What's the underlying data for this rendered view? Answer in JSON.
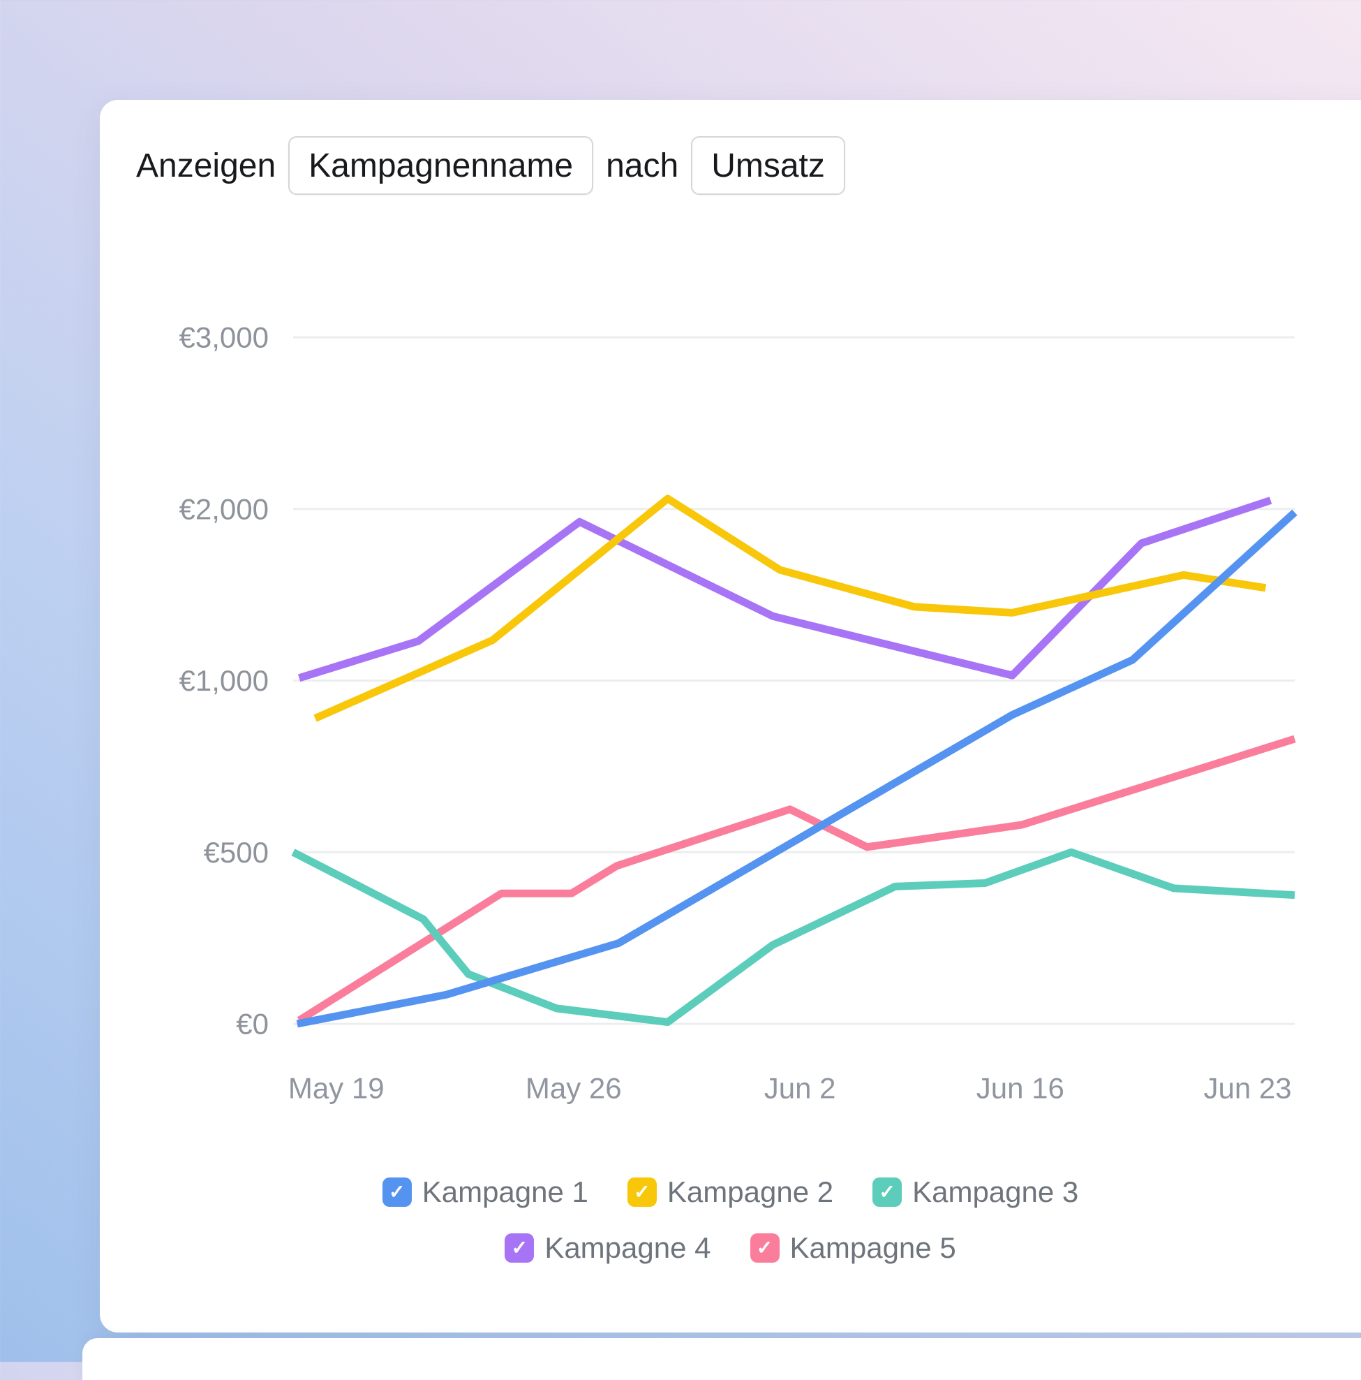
{
  "header": {
    "prefix": "Anzeigen",
    "dimension": "Kampagnenname",
    "connector": "nach",
    "measure": "Umsatz"
  },
  "colors": {
    "card_background": "#ffffff",
    "header_text": "#17191c",
    "chip_border": "#d3d6da",
    "gridline": "#ecedef",
    "y_axis_label": "#8e939b",
    "x_axis_label": "#9096a0",
    "legend_label": "#6e747c",
    "background_gradient": [
      "#9fc0eb",
      "#bdd0f1",
      "#ddd7ee",
      "#f5e8f2"
    ]
  },
  "chart_data": {
    "type": "line",
    "title": "Anzeigen Kampagnenname nach Umsatz",
    "currency": "EUR",
    "grid": true,
    "legend_position": "bottom",
    "ylabel": "Umsatz",
    "xlabel": "",
    "y_ticks": [
      0,
      500,
      1000,
      2000,
      3000
    ],
    "y_tick_labels": [
      "€0",
      "€500",
      "€1,000",
      "€2,000",
      "€3,000"
    ],
    "x_tick_labels": [
      "May 19",
      "May 26",
      "Jun 2",
      "Jun 16",
      "Jun 23"
    ],
    "x_tick_positions": [
      0.043,
      0.28,
      0.506,
      0.726,
      0.953
    ],
    "series": [
      {
        "name": "Kampagne 1",
        "color": "#5593f0",
        "points": [
          [
            0.004,
            0
          ],
          [
            0.153,
            85
          ],
          [
            0.325,
            235
          ],
          [
            0.718,
            900
          ],
          [
            0.838,
            1120
          ],
          [
            1.0,
            1980
          ]
        ]
      },
      {
        "name": "Kampagne 2",
        "color": "#f8c70a",
        "points": [
          [
            0.022,
            890
          ],
          [
            0.199,
            1235
          ],
          [
            0.374,
            2060
          ],
          [
            0.486,
            1645
          ],
          [
            0.62,
            1430
          ],
          [
            0.718,
            1395
          ],
          [
            0.889,
            1615
          ],
          [
            0.971,
            1540
          ]
        ]
      },
      {
        "name": "Kampagne 3",
        "color": "#5cccbb",
        "points": [
          [
            0.0,
            500
          ],
          [
            0.13,
            305
          ],
          [
            0.175,
            145
          ],
          [
            0.263,
            45
          ],
          [
            0.374,
            5
          ],
          [
            0.479,
            230
          ],
          [
            0.601,
            400
          ],
          [
            0.691,
            410
          ],
          [
            0.777,
            500
          ],
          [
            0.879,
            395
          ],
          [
            1.0,
            375
          ]
        ]
      },
      {
        "name": "Kampagne 4",
        "color": "#a874f6",
        "points": [
          [
            0.006,
            1015
          ],
          [
            0.125,
            1230
          ],
          [
            0.286,
            1925
          ],
          [
            0.479,
            1375
          ],
          [
            0.718,
            1030
          ],
          [
            0.847,
            1800
          ],
          [
            0.976,
            2050
          ]
        ]
      },
      {
        "name": "Kampagne 5",
        "color": "#fa7e9c",
        "points": [
          [
            0.006,
            10
          ],
          [
            0.208,
            380
          ],
          [
            0.278,
            380
          ],
          [
            0.323,
            460
          ],
          [
            0.496,
            625
          ],
          [
            0.573,
            515
          ],
          [
            0.728,
            580
          ],
          [
            1.0,
            830
          ]
        ]
      }
    ]
  }
}
